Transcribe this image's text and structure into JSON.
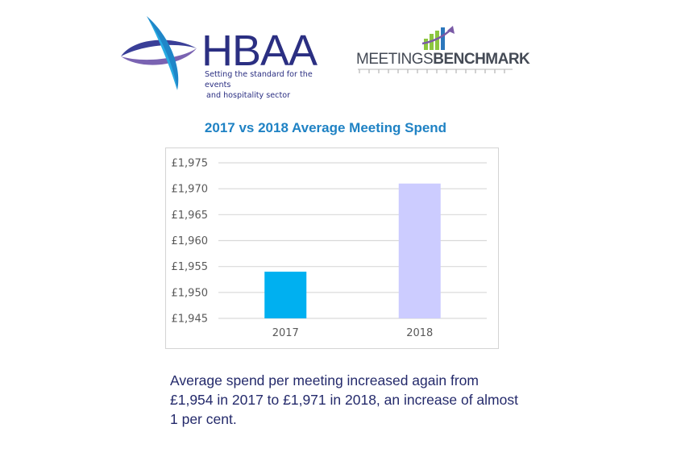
{
  "logos": {
    "hbaa": {
      "icon": "hbaa-swoosh-icon",
      "wordmark": "HBAA",
      "tagline_line1": "Setting the standard for the events",
      "tagline_line2": "and hospitality sector",
      "colors": {
        "navy": "#2b2f82",
        "purple": "#6e5aa8",
        "cyan": "#29abe2"
      }
    },
    "meetings_benchmark": {
      "icon": "bar-growth-arrow-icon",
      "word_part1": "MEETINGS",
      "word_part2": "BENCHMARK",
      "colors": {
        "text": "#444a55",
        "green": "#8cc63f",
        "blue": "#2c77bc",
        "purple": "#7a5aa6"
      }
    }
  },
  "chart_data": {
    "type": "bar",
    "title": "2017 vs 2018 Average Meeting Spend",
    "categories": [
      "2017",
      "2018"
    ],
    "values": [
      1954,
      1971
    ],
    "bar_colors": [
      "#00b0f0",
      "#ccccff"
    ],
    "xlabel": "",
    "ylabel": "",
    "ylim": [
      1945,
      1975
    ],
    "yticks": [
      1945,
      1950,
      1955,
      1960,
      1965,
      1970,
      1975
    ],
    "ytick_labels": [
      "£1,945",
      "£1,950",
      "£1,955",
      "£1,960",
      "£1,965",
      "£1,970",
      "£1,975"
    ],
    "grid": true,
    "legend": "none"
  },
  "caption": {
    "text": "Average spend per meeting increased again from £1,954 in 2017 to £1,971 in 2018, an increase of almost 1 per cent."
  }
}
